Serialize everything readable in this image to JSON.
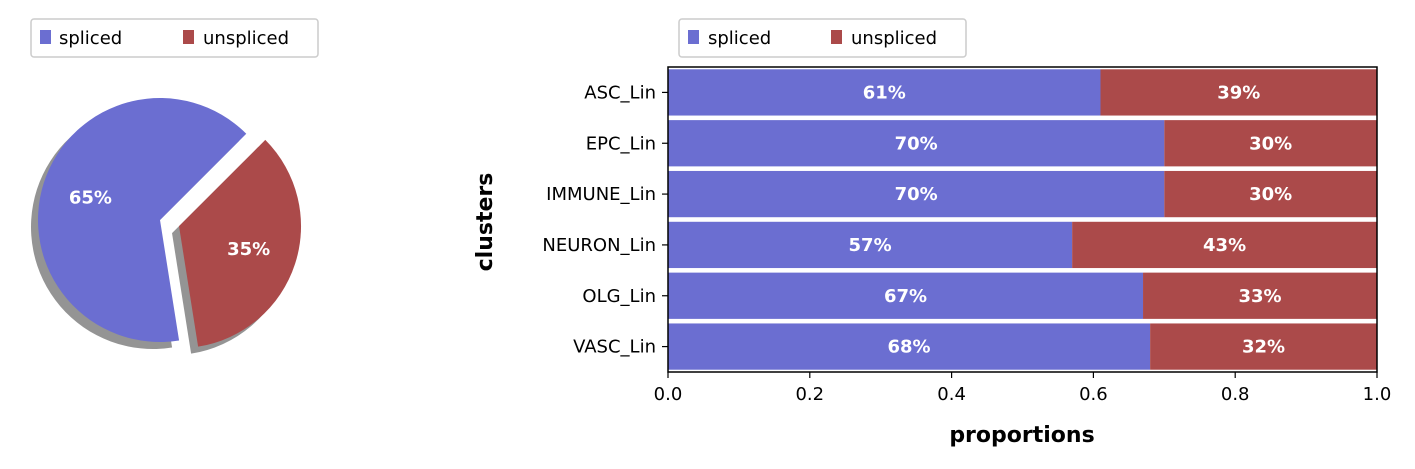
{
  "colors": {
    "spliced": "#6b6ed1",
    "unspliced": "#ab4a4a"
  },
  "legend_pie": {
    "items": [
      "spliced",
      "unspliced"
    ],
    "placement": "top-left"
  },
  "legend_bar": {
    "items": [
      "spliced",
      "unspliced"
    ],
    "placement": "top-left"
  },
  "chart_data": [
    {
      "type": "pie",
      "labels": [
        "spliced",
        "unspliced"
      ],
      "values": [
        65,
        35
      ],
      "value_labels": [
        "65%",
        "35%"
      ],
      "exploded": "unspliced",
      "shadow": true
    },
    {
      "type": "bar",
      "orientation": "horizontal",
      "stacked": true,
      "categories": [
        "ASC_Lin",
        "EPC_Lin",
        "IMMUNE_Lin",
        "NEURON_Lin",
        "OLG_Lin",
        "VASC_Lin"
      ],
      "series": [
        {
          "name": "spliced",
          "values": [
            0.61,
            0.7,
            0.7,
            0.57,
            0.67,
            0.68
          ],
          "labels": [
            "61%",
            "70%",
            "70%",
            "57%",
            "67%",
            "68%"
          ]
        },
        {
          "name": "unspliced",
          "values": [
            0.39,
            0.3,
            0.3,
            0.43,
            0.33,
            0.32
          ],
          "labels": [
            "39%",
            "30%",
            "30%",
            "43%",
            "33%",
            "32%"
          ]
        }
      ],
      "xlabel": "proportions",
      "ylabel": "clusters",
      "xlim": [
        0,
        1
      ],
      "xticks": [
        "0.0",
        "0.2",
        "0.4",
        "0.6",
        "0.8",
        "1.0"
      ],
      "grid": false
    }
  ]
}
